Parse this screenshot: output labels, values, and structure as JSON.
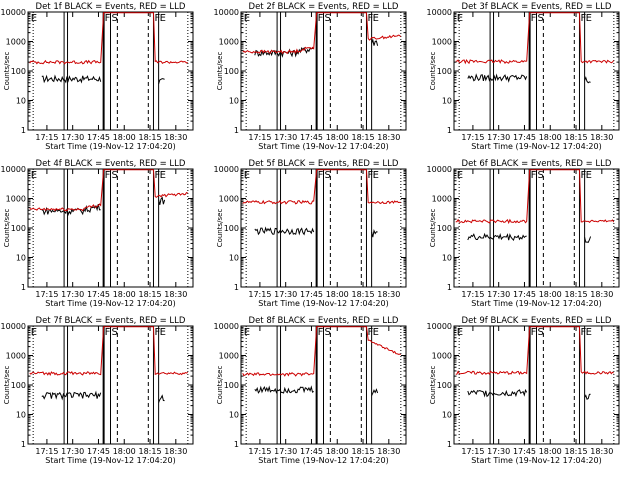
{
  "chart_data": [
    {
      "type": "line",
      "title": "Det 1f BLACK = Events, RED = LLD",
      "xlabel": "Start Time (19-Nov-12 17:04:20)",
      "ylabel": "Counts/sec",
      "xtick_labels": [
        "17:15",
        "17:30",
        "17:45",
        "18:00",
        "18:15",
        "18:30"
      ],
      "ytick_labels": [
        "1",
        "10",
        "100",
        "1000",
        "10000"
      ],
      "xlim": [
        "17:04",
        "18:40"
      ],
      "ylim": [
        1,
        10000
      ],
      "yscale": "log",
      "markers": [
        {
          "label": "E",
          "time": "17:05"
        },
        {
          "label": "F",
          "time": "17:48"
        },
        {
          "label": "S",
          "time": "17:52"
        },
        {
          "label": "F",
          "time": "18:17"
        },
        {
          "label": "E",
          "time": "18:20"
        }
      ],
      "series": [
        {
          "name": "Events",
          "color": "#000000",
          "level": 55,
          "peak": 0
        },
        {
          "name": "LLD",
          "color": "#cc0000",
          "level": 200,
          "peak": 0
        }
      ]
    },
    {
      "type": "line",
      "title": "Det 2f BLACK = Events, RED = LLD",
      "xlabel": "Start Time (19-Nov-12 17:04:20)",
      "ylabel": "Counts/sec",
      "xtick_labels": [
        "17:15",
        "17:30",
        "17:45",
        "18:00",
        "18:15",
        "18:30"
      ],
      "ytick_labels": [
        "1",
        "10",
        "100",
        "1000",
        "10000"
      ],
      "xlim": [
        "17:04",
        "18:40"
      ],
      "ylim": [
        1,
        10000
      ],
      "yscale": "log",
      "markers": [
        {
          "label": "E",
          "time": "17:05"
        },
        {
          "label": "F",
          "time": "17:48"
        },
        {
          "label": "S",
          "time": "17:52"
        },
        {
          "label": "F",
          "time": "18:17"
        },
        {
          "label": "E",
          "time": "18:20"
        }
      ],
      "series": [
        {
          "name": "Events",
          "color": "#000000",
          "level": 420,
          "peak": 1
        },
        {
          "name": "LLD",
          "color": "#cc0000",
          "level": 450,
          "peak": 1
        }
      ]
    },
    {
      "type": "line",
      "title": "Det 3f BLACK = Events, RED = LLD",
      "xlabel": "Start Time (19-Nov-12 17:04:20)",
      "ylabel": "Counts/sec",
      "xtick_labels": [
        "17:15",
        "17:30",
        "17:45",
        "18:00",
        "18:15",
        "18:30"
      ],
      "ytick_labels": [
        "1",
        "10",
        "100",
        "1000",
        "10000"
      ],
      "xlim": [
        "17:04",
        "18:40"
      ],
      "ylim": [
        1,
        10000
      ],
      "yscale": "log",
      "markers": [
        {
          "label": "E",
          "time": "17:05"
        },
        {
          "label": "F",
          "time": "17:48"
        },
        {
          "label": "S",
          "time": "17:52"
        },
        {
          "label": "F",
          "time": "18:17"
        },
        {
          "label": "E",
          "time": "18:20"
        }
      ],
      "series": [
        {
          "name": "Events",
          "color": "#000000",
          "level": 60,
          "peak": 0
        },
        {
          "name": "LLD",
          "color": "#cc0000",
          "level": 210,
          "peak": 0
        }
      ]
    },
    {
      "type": "line",
      "title": "Det 4f BLACK = Events, RED = LLD",
      "xlabel": "Start Time (19-Nov-12 17:04:20)",
      "ylabel": "Counts/sec",
      "xtick_labels": [
        "17:15",
        "17:30",
        "17:45",
        "18:00",
        "18:15",
        "18:30"
      ],
      "ytick_labels": [
        "1",
        "10",
        "100",
        "1000",
        "10000"
      ],
      "xlim": [
        "17:04",
        "18:40"
      ],
      "ylim": [
        1,
        10000
      ],
      "yscale": "log",
      "markers": [
        {
          "label": "E",
          "time": "17:05"
        },
        {
          "label": "F",
          "time": "17:48"
        },
        {
          "label": "S",
          "time": "17:52"
        },
        {
          "label": "F",
          "time": "18:17"
        },
        {
          "label": "E",
          "time": "18:20"
        }
      ],
      "series": [
        {
          "name": "Events",
          "color": "#000000",
          "level": 380,
          "peak": 1
        },
        {
          "name": "LLD",
          "color": "#cc0000",
          "level": 430,
          "peak": 1
        }
      ]
    },
    {
      "type": "line",
      "title": "Det 5f BLACK = Events, RED = LLD",
      "xlabel": "Start Time (19-Nov-12 17:04:20)",
      "ylabel": "Counts/sec",
      "xtick_labels": [
        "17:15",
        "17:30",
        "17:45",
        "18:00",
        "18:15",
        "18:30"
      ],
      "ytick_labels": [
        "1",
        "10",
        "100",
        "1000",
        "10000"
      ],
      "xlim": [
        "17:04",
        "18:40"
      ],
      "ylim": [
        1,
        10000
      ],
      "yscale": "log",
      "markers": [
        {
          "label": "E",
          "time": "17:05"
        },
        {
          "label": "F",
          "time": "17:48"
        },
        {
          "label": "S",
          "time": "17:52"
        },
        {
          "label": "F",
          "time": "18:17"
        },
        {
          "label": "E",
          "time": "18:20"
        }
      ],
      "series": [
        {
          "name": "Events",
          "color": "#000000",
          "level": 80,
          "peak": 0
        },
        {
          "name": "LLD",
          "color": "#cc0000",
          "level": 750,
          "peak": 0
        }
      ]
    },
    {
      "type": "line",
      "title": "Det 6f BLACK = Events, RED = LLD",
      "xlabel": "Start Time (19-Nov-12 17:04:20)",
      "ylabel": "Counts/sec",
      "xtick_labels": [
        "17:15",
        "17:30",
        "17:45",
        "18:00",
        "18:15",
        "18:30"
      ],
      "ytick_labels": [
        "1",
        "10",
        "100",
        "1000",
        "10000"
      ],
      "xlim": [
        "17:04",
        "18:40"
      ],
      "ylim": [
        1,
        10000
      ],
      "yscale": "log",
      "markers": [
        {
          "label": "E",
          "time": "17:05"
        },
        {
          "label": "F",
          "time": "17:48"
        },
        {
          "label": "S",
          "time": "17:52"
        },
        {
          "label": "F",
          "time": "18:17"
        },
        {
          "label": "E",
          "time": "18:20"
        }
      ],
      "series": [
        {
          "name": "Events",
          "color": "#000000",
          "level": 50,
          "peak": 0
        },
        {
          "name": "LLD",
          "color": "#cc0000",
          "level": 170,
          "peak": 0
        }
      ]
    },
    {
      "type": "line",
      "title": "Det 7f BLACK = Events, RED = LLD",
      "xlabel": "Start Time (19-Nov-12 17:04:20)",
      "ylabel": "Counts/sec",
      "xtick_labels": [
        "17:15",
        "17:30",
        "17:45",
        "18:00",
        "18:15",
        "18:30"
      ],
      "ytick_labels": [
        "1",
        "10",
        "100",
        "1000",
        "10000"
      ],
      "xlim": [
        "17:04",
        "18:40"
      ],
      "ylim": [
        1,
        10000
      ],
      "yscale": "log",
      "markers": [
        {
          "label": "E",
          "time": "17:05"
        },
        {
          "label": "F",
          "time": "17:48"
        },
        {
          "label": "S",
          "time": "17:52"
        },
        {
          "label": "F",
          "time": "18:17"
        },
        {
          "label": "E",
          "time": "18:20"
        }
      ],
      "series": [
        {
          "name": "Events",
          "color": "#000000",
          "level": 45,
          "peak": 0
        },
        {
          "name": "LLD",
          "color": "#cc0000",
          "level": 250,
          "peak": 0
        }
      ]
    },
    {
      "type": "line",
      "title": "Det 8f BLACK = Events, RED = LLD",
      "xlabel": "Start Time (19-Nov-12 17:04:20)",
      "ylabel": "Counts/sec",
      "xtick_labels": [
        "17:15",
        "17:30",
        "17:45",
        "18:00",
        "18:15",
        "18:30"
      ],
      "ytick_labels": [
        "1",
        "10",
        "100",
        "1000",
        "10000"
      ],
      "xlim": [
        "17:04",
        "18:40"
      ],
      "ylim": [
        1,
        10000
      ],
      "yscale": "log",
      "markers": [
        {
          "label": "E",
          "time": "17:05"
        },
        {
          "label": "F",
          "time": "17:48"
        },
        {
          "label": "S",
          "time": "17:52"
        },
        {
          "label": "F",
          "time": "18:17"
        },
        {
          "label": "E",
          "time": "18:20"
        }
      ],
      "series": [
        {
          "name": "Events",
          "color": "#000000",
          "level": 70,
          "peak": 0
        },
        {
          "name": "LLD",
          "color": "#cc0000",
          "level": 230,
          "peak": 2
        }
      ]
    },
    {
      "type": "line",
      "title": "Det 9f BLACK = Events, RED = LLD",
      "xlabel": "Start Time (19-Nov-12 17:04:20)",
      "ylabel": "Counts/sec",
      "xtick_labels": [
        "17:15",
        "17:30",
        "17:45",
        "18:00",
        "18:15",
        "18:30"
      ],
      "ytick_labels": [
        "1",
        "10",
        "100",
        "1000",
        "10000"
      ],
      "xlim": [
        "17:04",
        "18:40"
      ],
      "ylim": [
        1,
        10000
      ],
      "yscale": "log",
      "markers": [
        {
          "label": "E",
          "time": "17:05"
        },
        {
          "label": "F",
          "time": "17:48"
        },
        {
          "label": "S",
          "time": "17:52"
        },
        {
          "label": "F",
          "time": "18:17"
        },
        {
          "label": "E",
          "time": "18:20"
        }
      ],
      "series": [
        {
          "name": "Events",
          "color": "#000000",
          "level": 55,
          "peak": 0
        },
        {
          "name": "LLD",
          "color": "#cc0000",
          "level": 260,
          "peak": 0
        }
      ]
    }
  ]
}
